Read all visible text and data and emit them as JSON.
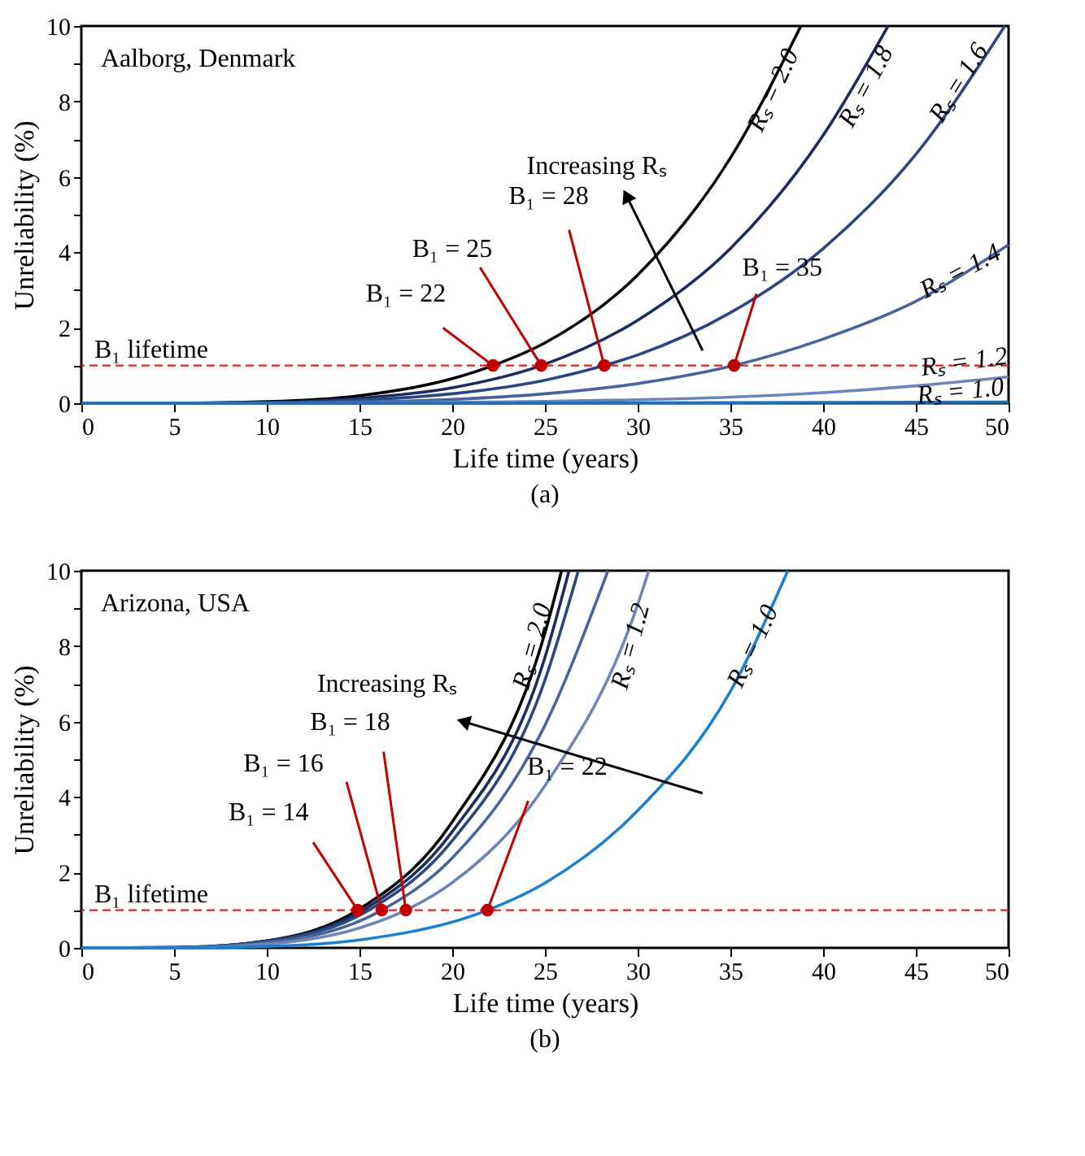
{
  "chart_data": [
    {
      "type": "line",
      "xlabel": "Life time (years)",
      "ylabel": "Unreliability (%)",
      "xlim": [
        0,
        50
      ],
      "xticks": [
        0,
        5,
        10,
        15,
        20,
        25,
        30,
        35,
        40,
        45,
        50
      ],
      "ylim": [
        0,
        10
      ],
      "yticks": [
        0,
        {
          "value": 1,
          "label": null
        },
        2,
        {
          "value": 3,
          "label": null
        },
        4,
        {
          "value": 5,
          "label": null
        },
        6,
        {
          "value": 7,
          "label": null
        },
        8,
        {
          "value": 9,
          "label": null
        },
        10
      ],
      "grid": false,
      "legend": false,
      "series": [
        {
          "name": "Rₛ = 2.0",
          "color": "#000000",
          "x": [
            0,
            5,
            10,
            15,
            20,
            22.2,
            25,
            30,
            35,
            38.8
          ],
          "values": [
            0,
            0,
            0.04,
            0.2,
            0.65,
            1,
            1.6,
            3.4,
            6.5,
            10
          ]
        },
        {
          "name": "Rₛ = 1.8",
          "color": "#1c2c5c",
          "x": [
            0,
            5,
            10,
            15,
            20,
            24.8,
            30,
            35,
            40,
            43.5
          ],
          "values": [
            0,
            0,
            0.02,
            0.13,
            0.41,
            1,
            2.2,
            4.1,
            7.1,
            10
          ]
        },
        {
          "name": "Rₛ = 1.6",
          "color": "#2c4680",
          "x": [
            0,
            5,
            10,
            15,
            20,
            25,
            28.2,
            30,
            35,
            40,
            45,
            49.8
          ],
          "values": [
            0,
            0,
            0.01,
            0.08,
            0.25,
            0.61,
            1,
            1.28,
            2.4,
            4.1,
            6.6,
            10
          ]
        },
        {
          "name": "Rₛ = 1.4",
          "color": "#4a6499",
          "x": [
            0,
            5,
            10,
            15,
            20,
            25,
            30,
            35.2,
            40,
            45,
            50
          ],
          "values": [
            0,
            0,
            0,
            0.03,
            0.1,
            0.25,
            0.52,
            1,
            1.7,
            2.7,
            4.2
          ]
        },
        {
          "name": "Rₛ = 1.2",
          "color": "#6f86b5",
          "x": [
            0,
            10,
            20,
            25,
            30,
            35,
            40,
            45,
            50
          ],
          "values": [
            0,
            0,
            0.02,
            0.05,
            0.09,
            0.16,
            0.28,
            0.46,
            0.7
          ]
        },
        {
          "name": "Rₛ = 1.0",
          "color": "#1c6fbf",
          "x": [
            0,
            10,
            20,
            30,
            40,
            50
          ],
          "values": [
            0,
            0,
            0,
            0.01,
            0.02,
            0.03
          ]
        },
        {
          "type": "scatter",
          "marker": "circle",
          "color": "#c00000",
          "x": [
            22.2,
            24.8,
            28.2,
            35.2
          ],
          "values": [
            1,
            1,
            1,
            1
          ]
        }
      ],
      "ref_lines": [
        {
          "axis": "y",
          "value": 1,
          "label": "B₁ lifetime",
          "color": "#e02020",
          "line_style": "dashed"
        }
      ],
      "annotations": [
        "Aalborg, Denmark",
        "Increasing Rₛ",
        "(a)",
        {
          "text": "B₁ = 22",
          "x": 22.2,
          "y": 1
        },
        {
          "text": "B₁ = 25",
          "x": 24.8,
          "y": 1
        },
        {
          "text": "B₁ = 28",
          "x": 28.2,
          "y": 1
        },
        {
          "text": "B₁ = 35",
          "x": 35.2,
          "y": 1
        }
      ]
    },
    {
      "type": "line",
      "xlabel": "Life time (years)",
      "ylabel": "Unreliability (%)",
      "xlim": [
        0,
        50
      ],
      "xticks": [
        0,
        5,
        10,
        15,
        20,
        25,
        30,
        35,
        40,
        45,
        50
      ],
      "ylim": [
        0,
        10
      ],
      "yticks": [
        0,
        {
          "value": 1,
          "label": null
        },
        2,
        {
          "value": 3,
          "label": null
        },
        4,
        {
          "value": 5,
          "label": null
        },
        6,
        {
          "value": 7,
          "label": null
        },
        8,
        {
          "value": 9,
          "label": null
        },
        10
      ],
      "grid": false,
      "legend": false,
      "series": [
        {
          "name": "Rₛ = 2.0",
          "color": "#000000",
          "x": [
            0,
            5,
            10,
            14.9,
            20,
            25,
            25.9
          ],
          "values": [
            0,
            0.01,
            0.19,
            1,
            3.34,
            8.35,
            10
          ]
        },
        {
          "color": "#1c2c5c",
          "x": [
            0,
            5,
            10,
            15.2,
            20,
            25,
            26.3
          ],
          "values": [
            0,
            0.01,
            0.18,
            1,
            3.08,
            7.7,
            10
          ]
        },
        {
          "color": "#2c4680",
          "x": [
            0,
            5,
            10,
            15.5,
            20,
            25,
            26.8
          ],
          "values": [
            0,
            0.01,
            0.17,
            1,
            2.84,
            7.1,
            10
          ]
        },
        {
          "color": "#4a6499",
          "x": [
            0,
            5,
            10,
            16.2,
            20,
            25,
            28.4
          ],
          "values": [
            0,
            0.01,
            0.14,
            1,
            2.38,
            5.9,
            10
          ]
        },
        {
          "name": "Rₛ = 1.2",
          "color": "#6f86b5",
          "x": [
            0,
            5,
            10,
            15,
            17.5,
            20,
            25,
            30,
            30.6
          ],
          "values": [
            0,
            0,
            0.1,
            0.53,
            1,
            1.73,
            4.3,
            9.1,
            10
          ]
        },
        {
          "name": "Rₛ = 1.0",
          "color": "#1c7fd0",
          "x": [
            0,
            5,
            10,
            15,
            21.9,
            25,
            30,
            35,
            38.1
          ],
          "values": [
            0,
            0,
            0.04,
            0.21,
            1,
            1.72,
            3.64,
            6.8,
            10
          ]
        },
        {
          "type": "scatter",
          "marker": "circle",
          "color": "#c00000",
          "x": [
            14.9,
            16.2,
            17.5,
            21.9
          ],
          "values": [
            1,
            1,
            1,
            1
          ]
        }
      ],
      "ref_lines": [
        {
          "axis": "y",
          "value": 1,
          "label": "B₁ lifetime",
          "color": "#e02020",
          "line_style": "dashed"
        }
      ],
      "annotations": [
        "Arizona, USA",
        "Increasing Rₛ",
        "(b)",
        {
          "text": "B₁ = 14",
          "x": 14.9,
          "y": 1
        },
        {
          "text": "B₁ = 16",
          "x": 16.2,
          "y": 1
        },
        {
          "text": "B₁ = 18",
          "x": 17.5,
          "y": 1
        },
        {
          "text": "B₁ = 22",
          "x": 21.9,
          "y": 1
        }
      ]
    }
  ]
}
